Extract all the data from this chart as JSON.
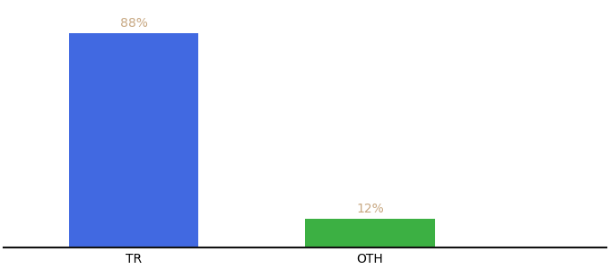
{
  "categories": [
    "TR",
    "OTH"
  ],
  "values": [
    88,
    12
  ],
  "bar_colors": [
    "#4169E1",
    "#3CB043"
  ],
  "label_color": "#C8A882",
  "label_format": [
    "88%",
    "12%"
  ],
  "background_color": "#ffffff",
  "ylim": [
    0,
    100
  ],
  "x_positions": [
    1,
    2
  ],
  "bar_width": 0.55,
  "xlim": [
    0.45,
    3.0
  ],
  "figsize": [
    6.8,
    3.0
  ],
  "dpi": 100,
  "label_fontsize": 10,
  "tick_fontsize": 10,
  "axis_line_color": "#111111"
}
